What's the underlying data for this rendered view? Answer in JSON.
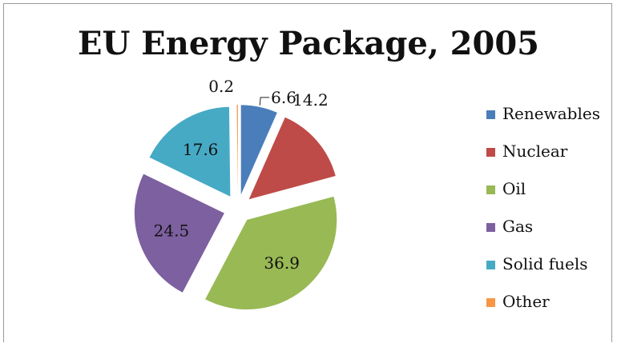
{
  "chart_data": {
    "type": "pie",
    "title": "EU Energy Package, 2005",
    "categories": [
      "Renewables",
      "Nuclear",
      "Oil",
      "Gas",
      "Solid fuels",
      "Other"
    ],
    "values": [
      6.6,
      14.2,
      36.9,
      24.5,
      17.6,
      0.2
    ],
    "labels": [
      "6.6",
      "14.2",
      "36.9",
      "24.5",
      "17.6",
      "0.2"
    ],
    "colors": [
      "#4a7ebb",
      "#be4b48",
      "#98b954",
      "#7d60a0",
      "#46aac5",
      "#f79646"
    ],
    "legend_position": "right",
    "exploded": true,
    "start": "12 o'clock, clockwise"
  }
}
